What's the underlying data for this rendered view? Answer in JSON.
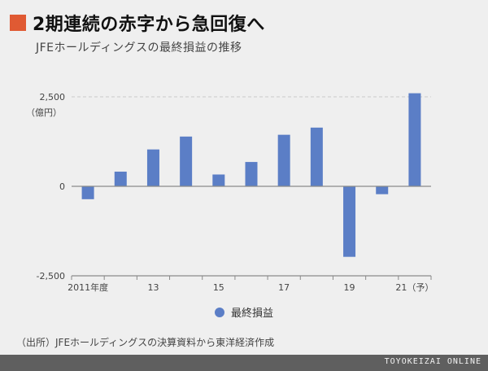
{
  "headline": "2期連続の赤字から急回復へ",
  "subtitle": "JFEホールディングスの最終損益の推移",
  "source": "（出所）JFEホールディングスの決算資料から東洋経済作成",
  "brand": "TOYOKEIZAI ONLINE",
  "colors": {
    "bar": "#5b7ec6",
    "accent": "#e05a33",
    "footer": "#5f5f5f"
  },
  "chart_data": {
    "type": "bar",
    "categories": [
      "2011",
      "2012",
      "2013",
      "2014",
      "2015",
      "2016",
      "2017",
      "2018",
      "2019",
      "2020",
      "2021"
    ],
    "series": [
      {
        "name": "最終損益",
        "values": [
          -360,
          410,
          1030,
          1390,
          330,
          680,
          1440,
          1640,
          -1970,
          -220,
          2600
        ]
      }
    ],
    "ylim": [
      -2500,
      2500
    ],
    "yticks": [
      2500,
      0,
      -2500
    ],
    "ytick_labels": [
      "2,500",
      "0",
      "-2,500"
    ],
    "yunit": "（億円）",
    "x_tick_labels": [
      {
        "category": "2011",
        "label": "2011年度"
      },
      {
        "category": "2013",
        "label": "13"
      },
      {
        "category": "2015",
        "label": "15"
      },
      {
        "category": "2017",
        "label": "17"
      },
      {
        "category": "2019",
        "label": "19"
      },
      {
        "category": "2021",
        "label": "21（予）"
      }
    ],
    "gridlines": true,
    "legend_position": "bottom-center"
  }
}
